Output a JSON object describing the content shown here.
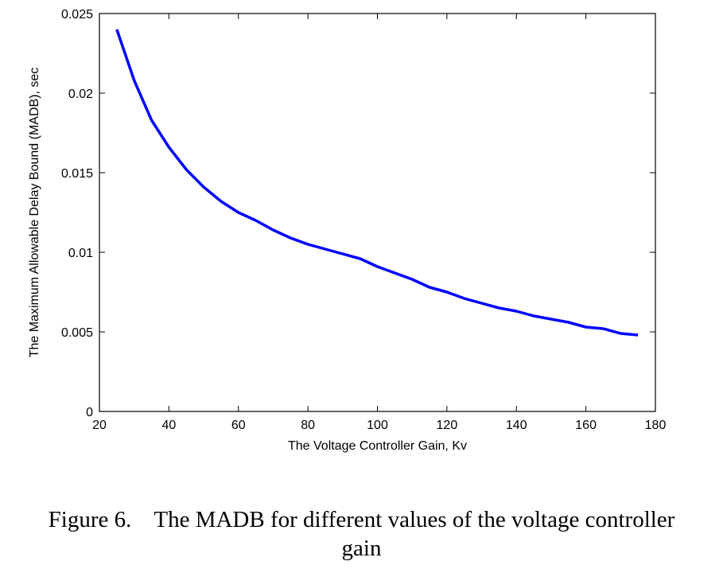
{
  "chart_data": {
    "type": "line",
    "ylabel": "The Maximum Allowable Delay Bound (MADB), sec",
    "xlabel": "The Voltage Controller Gain, Kv",
    "xlim": [
      20,
      180
    ],
    "ylim": [
      0,
      0.025
    ],
    "x_ticks": [
      "20",
      "40",
      "60",
      "80",
      "100",
      "120",
      "140",
      "160",
      "180"
    ],
    "y_ticks": [
      "0",
      "0.005",
      "0.01",
      "0.015",
      "0.02",
      "0.025"
    ],
    "grid": false,
    "series": [
      {
        "color": "#0000ff",
        "x": [
          25,
          30,
          35,
          40,
          45,
          50,
          55,
          60,
          65,
          70,
          75,
          80,
          85,
          90,
          95,
          100,
          105,
          110,
          115,
          120,
          125,
          130,
          135,
          140,
          145,
          150,
          155,
          160,
          165,
          170,
          175
        ],
        "y": [
          0.024,
          0.0208,
          0.0183,
          0.0166,
          0.0152,
          0.0141,
          0.0132,
          0.0125,
          0.012,
          0.0114,
          0.0109,
          0.0105,
          0.0102,
          0.0099,
          0.0096,
          0.0091,
          0.0087,
          0.0083,
          0.0078,
          0.0075,
          0.0071,
          0.0068,
          0.0065,
          0.0063,
          0.006,
          0.0058,
          0.0056,
          0.0053,
          0.0052,
          0.0049,
          0.0048
        ]
      }
    ]
  },
  "caption": {
    "figure_number": "Figure 6.",
    "text_line1": "The MADB for different values of the voltage controller",
    "text_line2": "gain"
  }
}
